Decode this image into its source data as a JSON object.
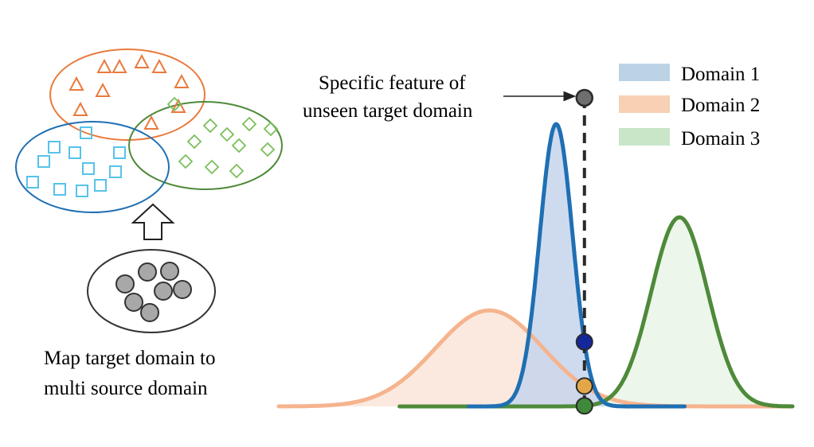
{
  "figure": {
    "map_caption": [
      "Map target domain to",
      "multi source domain"
    ],
    "feature_label": [
      "Specific feature of",
      "unseen target domain"
    ]
  },
  "legend": {
    "items": [
      {
        "label": "Domain 1",
        "swatch": "#bcd3e6"
      },
      {
        "label": "Domain 2",
        "swatch": "#f8d0b4"
      },
      {
        "label": "Domain 3",
        "swatch": "#c9e6c9"
      }
    ]
  },
  "clusters": {
    "domain1": {
      "shape": "square",
      "color": "#56c3ea",
      "ellipse": "#1f6fb3",
      "count": 15
    },
    "domain2": {
      "shape": "triangle",
      "color": "#ea7a3d",
      "ellipse": "#ea7a3d",
      "count": 10
    },
    "domain3": {
      "shape": "diamond",
      "color": "#7bbf5a",
      "ellipse": "#4e8a3a",
      "count": 11
    },
    "target": {
      "shape": "circle",
      "color": "#a8a8a8",
      "count": 7
    }
  },
  "chart_data": {
    "type": "area",
    "xlim": [
      0,
      10
    ],
    "ylim": [
      0,
      1
    ],
    "series": [
      {
        "name": "Domain 1",
        "mean": 5.4,
        "std": 0.32,
        "peak": 1.0,
        "stroke": "#1f6fb3",
        "fill": "#c5d5ec"
      },
      {
        "name": "Domain 2",
        "mean": 4.1,
        "std": 1.05,
        "peak": 0.34,
        "stroke": "#f5b48e",
        "fill": "#fbe7dc"
      },
      {
        "name": "Domain 3",
        "mean": 7.8,
        "std": 0.55,
        "peak": 0.67,
        "stroke": "#4e8a3a",
        "fill": "#eaf5e8"
      }
    ],
    "target_feature_x": 5.95,
    "markers": [
      {
        "series": "Domain 1",
        "color": "#13289b"
      },
      {
        "series": "Domain 2",
        "color": "#e3a74a"
      },
      {
        "series": "Domain 3",
        "color": "#3f8a3a"
      }
    ]
  }
}
